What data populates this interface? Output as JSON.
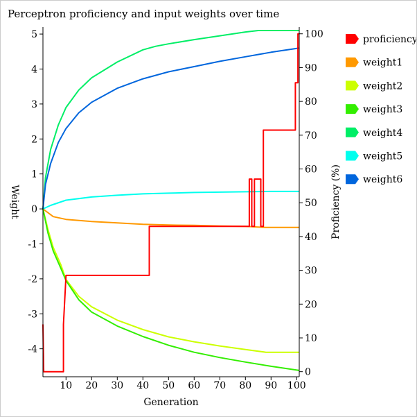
{
  "chart_data": {
    "type": "line",
    "title": "Perceptron proficiency and input weights over time",
    "xlabel": "Generation",
    "ylabel_left": "Weight",
    "ylabel_right": "Proficiency (%)",
    "xlim": [
      1,
      101
    ],
    "ylim_left": [
      -4.8,
      5.2
    ],
    "ylim_right": [
      -1.5,
      102
    ],
    "x_ticks": [
      10,
      20,
      30,
      40,
      50,
      60,
      70,
      80,
      90,
      100
    ],
    "y_left_ticks": [
      -4,
      -3,
      -2,
      -1,
      0,
      1,
      2,
      3,
      4,
      5
    ],
    "y_right_ticks": [
      0,
      10,
      20,
      30,
      40,
      50,
      60,
      70,
      80,
      90,
      100
    ],
    "grid": false,
    "legend_position": "right",
    "series": [
      {
        "name": "proficiency",
        "axis": "right",
        "color": "#ff0000",
        "step": true,
        "points": [
          [
            1,
            14
          ],
          [
            1.3,
            0
          ],
          [
            9,
            0
          ],
          [
            9,
            14
          ],
          [
            10,
            28.5
          ],
          [
            20,
            28.5
          ],
          [
            30,
            28.5
          ],
          [
            42.5,
            28.5
          ],
          [
            42.5,
            43
          ],
          [
            60,
            43
          ],
          [
            81.5,
            43
          ],
          [
            81.5,
            57
          ],
          [
            82.5,
            57
          ],
          [
            82.5,
            43
          ],
          [
            83.5,
            43
          ],
          [
            83.5,
            57
          ],
          [
            86,
            57
          ],
          [
            86,
            43
          ],
          [
            87,
            43
          ],
          [
            87,
            71.5
          ],
          [
            92,
            71.5
          ],
          [
            99.5,
            71.5
          ],
          [
            99.5,
            85.5
          ],
          [
            100.5,
            85.5
          ],
          [
            100.5,
            100
          ],
          [
            101,
            100
          ]
        ]
      },
      {
        "name": "weight1",
        "axis": "left",
        "color": "#ff9900",
        "points": [
          [
            1,
            0
          ],
          [
            5,
            -0.22
          ],
          [
            10,
            -0.3
          ],
          [
            20,
            -0.36
          ],
          [
            30,
            -0.4
          ],
          [
            40,
            -0.44
          ],
          [
            50,
            -0.46
          ],
          [
            60,
            -0.47
          ],
          [
            70,
            -0.49
          ],
          [
            80,
            -0.5
          ],
          [
            88,
            -0.53
          ],
          [
            95,
            -0.53
          ],
          [
            101,
            -0.53
          ]
        ]
      },
      {
        "name": "weight2",
        "axis": "left",
        "color": "#ccff00",
        "points": [
          [
            1,
            0
          ],
          [
            3,
            -0.6
          ],
          [
            5,
            -1.1
          ],
          [
            8,
            -1.6
          ],
          [
            10,
            -2.02
          ],
          [
            15,
            -2.5
          ],
          [
            20,
            -2.8
          ],
          [
            30,
            -3.18
          ],
          [
            40,
            -3.45
          ],
          [
            50,
            -3.66
          ],
          [
            60,
            -3.8
          ],
          [
            70,
            -3.92
          ],
          [
            80,
            -4.02
          ],
          [
            88,
            -4.1
          ],
          [
            95,
            -4.1
          ],
          [
            101,
            -4.1
          ]
        ]
      },
      {
        "name": "weight3",
        "axis": "left",
        "color": "#33ee00",
        "points": [
          [
            1,
            0
          ],
          [
            3,
            -0.7
          ],
          [
            5,
            -1.2
          ],
          [
            8,
            -1.7
          ],
          [
            10,
            -2.05
          ],
          [
            15,
            -2.6
          ],
          [
            20,
            -2.95
          ],
          [
            30,
            -3.35
          ],
          [
            40,
            -3.65
          ],
          [
            50,
            -3.9
          ],
          [
            60,
            -4.1
          ],
          [
            70,
            -4.25
          ],
          [
            80,
            -4.38
          ],
          [
            90,
            -4.5
          ],
          [
            101,
            -4.62
          ]
        ]
      },
      {
        "name": "weight4",
        "axis": "left",
        "color": "#00ee66",
        "points": [
          [
            1,
            0
          ],
          [
            2,
            0.9
          ],
          [
            4,
            1.7
          ],
          [
            7,
            2.4
          ],
          [
            10,
            2.9
          ],
          [
            15,
            3.4
          ],
          [
            20,
            3.75
          ],
          [
            30,
            4.2
          ],
          [
            40,
            4.55
          ],
          [
            45,
            4.65
          ],
          [
            50,
            4.72
          ],
          [
            60,
            4.84
          ],
          [
            70,
            4.95
          ],
          [
            80,
            5.06
          ],
          [
            85,
            5.1
          ],
          [
            101,
            5.1
          ]
        ]
      },
      {
        "name": "weight5",
        "axis": "left",
        "color": "#00ffee",
        "points": [
          [
            1,
            0
          ],
          [
            4,
            0.1
          ],
          [
            10,
            0.25
          ],
          [
            20,
            0.34
          ],
          [
            30,
            0.39
          ],
          [
            40,
            0.43
          ],
          [
            50,
            0.45
          ],
          [
            60,
            0.47
          ],
          [
            70,
            0.48
          ],
          [
            80,
            0.49
          ],
          [
            90,
            0.5
          ],
          [
            101,
            0.5
          ]
        ]
      },
      {
        "name": "weight6",
        "axis": "left",
        "color": "#0066dd",
        "points": [
          [
            1,
            0
          ],
          [
            2,
            0.7
          ],
          [
            4,
            1.3
          ],
          [
            7,
            1.9
          ],
          [
            10,
            2.3
          ],
          [
            15,
            2.75
          ],
          [
            20,
            3.05
          ],
          [
            30,
            3.45
          ],
          [
            40,
            3.72
          ],
          [
            50,
            3.92
          ],
          [
            60,
            4.07
          ],
          [
            70,
            4.22
          ],
          [
            80,
            4.35
          ],
          [
            90,
            4.48
          ],
          [
            101,
            4.6
          ]
        ]
      }
    ]
  }
}
